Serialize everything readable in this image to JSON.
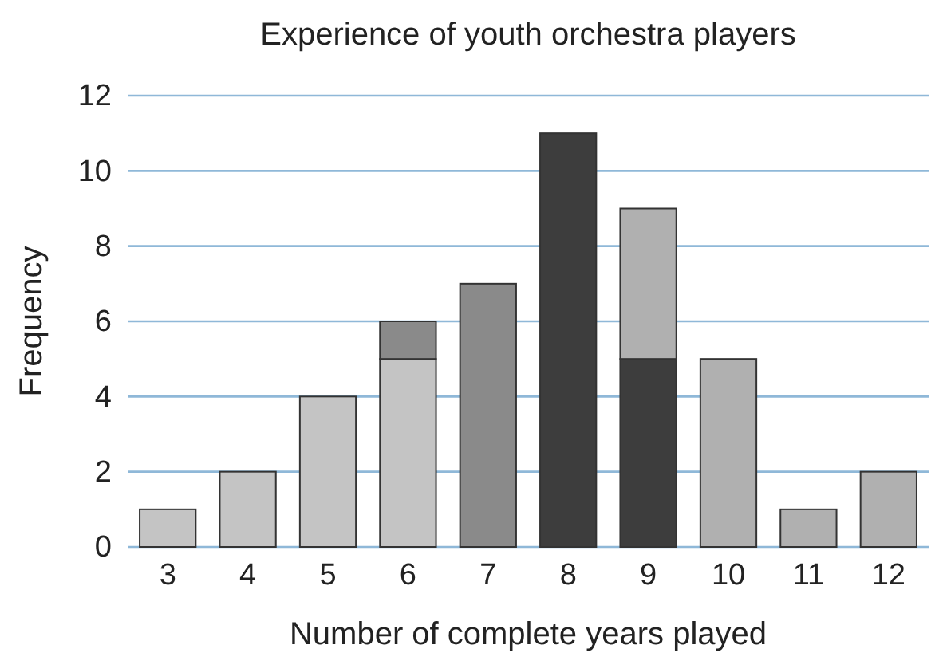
{
  "chart_data": {
    "type": "bar",
    "title": "Experience of youth orchestra players",
    "xlabel": "Number of complete years played",
    "ylabel": "Frequency",
    "categories": [
      "3",
      "4",
      "5",
      "6",
      "7",
      "8",
      "9",
      "10",
      "11",
      "12"
    ],
    "stacked": true,
    "series": [
      {
        "color": "#c4c4c4",
        "values": [
          1,
          2,
          4,
          5,
          null,
          null,
          null,
          null,
          null,
          null
        ]
      },
      {
        "color": "#8a8a8a",
        "values": [
          null,
          null,
          null,
          1,
          7,
          null,
          null,
          null,
          null,
          null
        ]
      },
      {
        "color": "#3d3d3d",
        "values": [
          null,
          null,
          null,
          null,
          null,
          11,
          5,
          null,
          null,
          null
        ]
      },
      {
        "color": "#b0b0b0",
        "values": [
          null,
          null,
          null,
          null,
          null,
          null,
          4,
          5,
          1,
          2
        ]
      }
    ],
    "ylim": [
      0,
      12
    ],
    "yticks": [
      0,
      2,
      4,
      6,
      8,
      10,
      12
    ],
    "grid": "y"
  }
}
